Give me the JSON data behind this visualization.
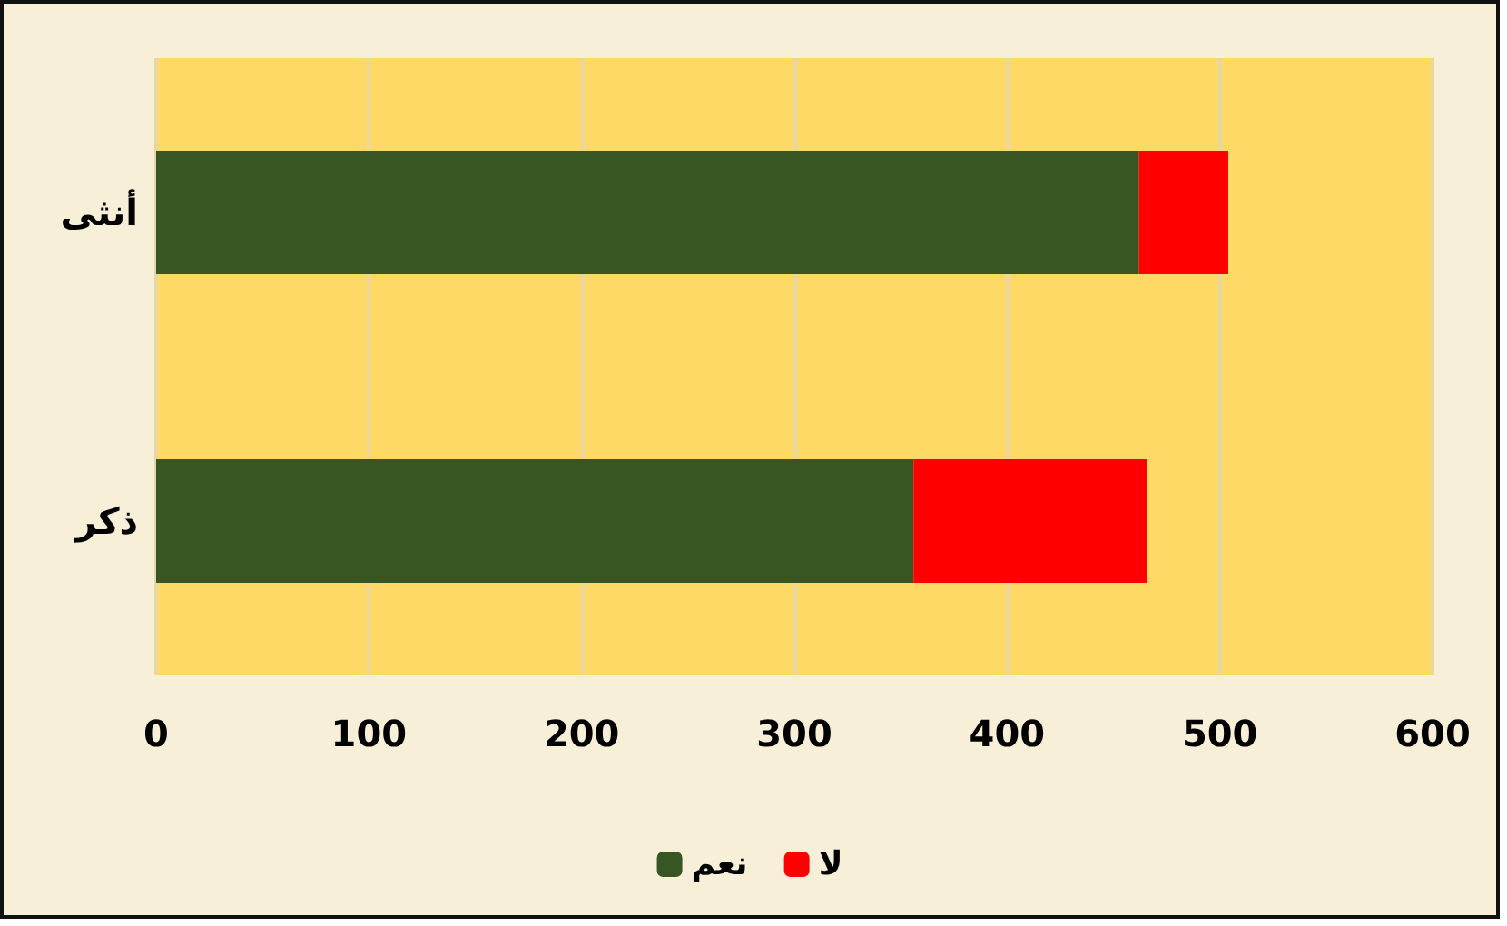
{
  "chart_data": {
    "type": "bar",
    "orientation": "horizontal",
    "stacked": true,
    "categories": [
      "أنثى",
      "ذكر"
    ],
    "series": [
      {
        "name": "نعم",
        "color": "#375623",
        "values": [
          462,
          356
        ]
      },
      {
        "name": "لا",
        "color": "#ff0000",
        "values": [
          42,
          110
        ]
      }
    ],
    "xlim": [
      0,
      600
    ],
    "xticks": [
      0,
      100,
      200,
      300,
      400,
      500,
      600
    ],
    "grid": "x",
    "legend": "bottom"
  }
}
